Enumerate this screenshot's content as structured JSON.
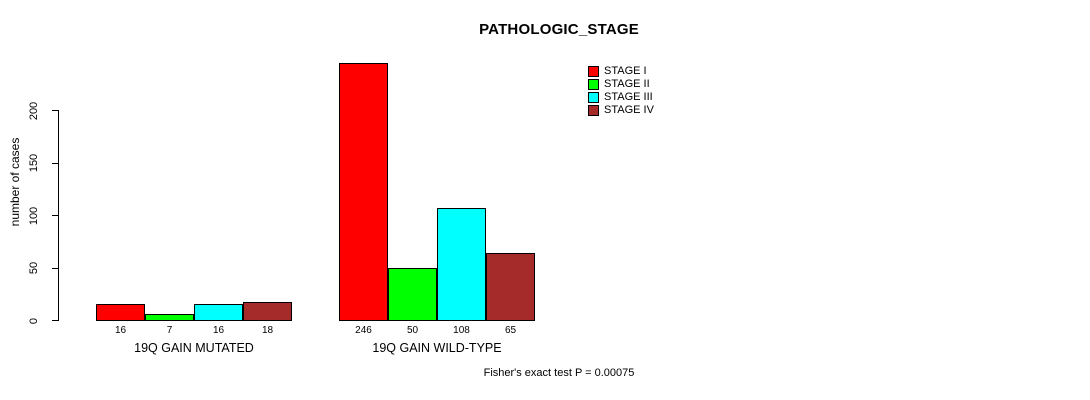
{
  "chart_data": {
    "type": "bar",
    "title": "PATHOLOGIC_STAGE",
    "ylabel": "number of cases",
    "xlabel": "",
    "ylim": [
      0,
      200
    ],
    "yticks": [
      0,
      50,
      100,
      150,
      200
    ],
    "grid": false,
    "legend_position": "top-right",
    "categories": [
      "19Q GAIN MUTATED",
      "19Q GAIN WILD-TYPE"
    ],
    "series": [
      {
        "name": "STAGE I",
        "color": "#FF0000",
        "values": [
          16,
          246
        ]
      },
      {
        "name": "STAGE II",
        "color": "#00FF00",
        "values": [
          7,
          50
        ]
      },
      {
        "name": "STAGE III",
        "color": "#00FFFF",
        "values": [
          16,
          108
        ]
      },
      {
        "name": "STAGE IV",
        "color": "#A52A2A",
        "values": [
          18,
          65
        ]
      }
    ],
    "bar_value_labels": [
      [
        "16",
        "7",
        "16",
        "18"
      ],
      [
        "246",
        "50",
        "108",
        "65"
      ]
    ],
    "footnote": "Fisher's exact test P = 0.00075"
  },
  "colors": {
    "background": "#FFFFFF",
    "axis": "#000000",
    "bar_border": "#000000",
    "text": "#000000"
  }
}
